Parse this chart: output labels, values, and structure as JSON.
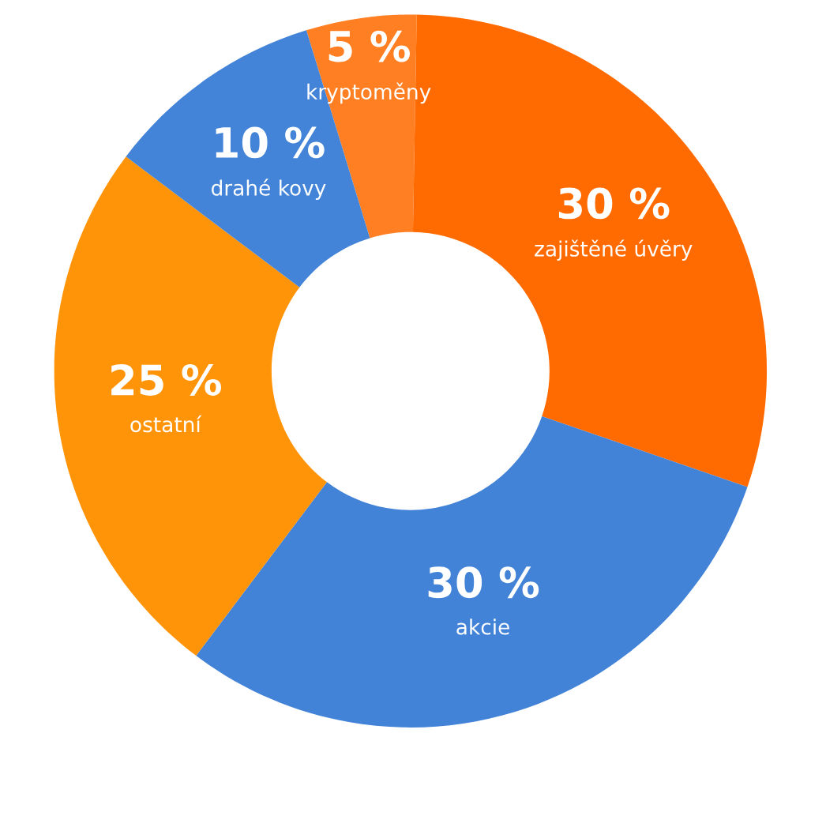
{
  "chart_data": {
    "type": "donut",
    "categories": [
      "kryptoměny",
      "zajištěné úvěry",
      "akcie",
      "ostatní",
      "drahé kovy"
    ],
    "values": [
      5,
      30,
      30,
      25,
      10
    ],
    "value_labels": [
      "5 %",
      "30 %",
      "30 %",
      "25 %",
      "10 %"
    ],
    "colors": [
      "#ff7f22",
      "#ff6b00",
      "#4283d8",
      "#ff9409",
      "#4384d8"
    ]
  }
}
